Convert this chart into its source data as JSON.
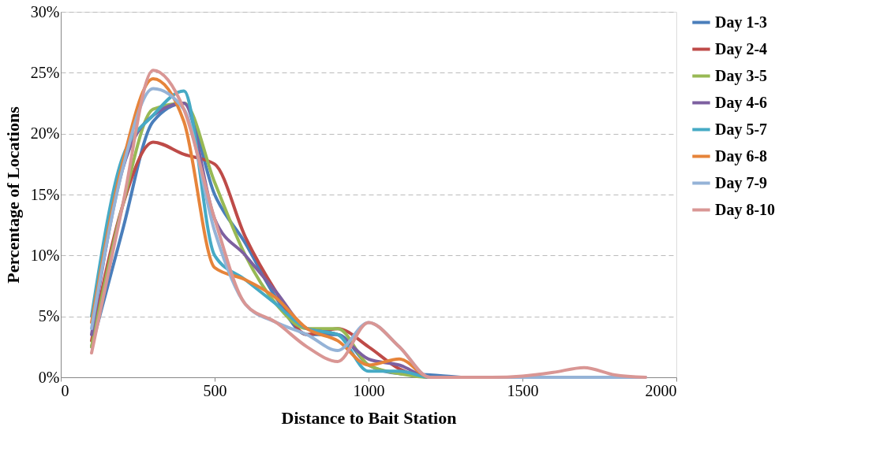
{
  "chart_data": {
    "type": "line",
    "xlabel": "Distance to Bait Station",
    "ylabel": "Percentage of Locations",
    "x": [
      100,
      200,
      300,
      400,
      500,
      600,
      700,
      800,
      900,
      1000,
      1100,
      1200,
      1300,
      1400,
      1500,
      1600,
      1700,
      1800,
      1900
    ],
    "series": [
      {
        "name": "Day 1-3",
        "color": "#4a7ebb",
        "values": [
          2.5,
          12,
          21,
          22.5,
          15,
          11,
          6.5,
          3.5,
          3.5,
          1,
          0.3,
          0.2,
          0,
          null,
          null,
          null,
          null,
          null,
          null
        ]
      },
      {
        "name": "Day 2-4",
        "color": "#be4b48",
        "values": [
          3,
          14,
          19.3,
          18.3,
          17.5,
          11.5,
          7,
          3.5,
          4,
          2.5,
          0.7,
          0,
          0,
          null,
          null,
          null,
          null,
          null,
          null
        ]
      },
      {
        "name": "Day 3-5",
        "color": "#98b954",
        "values": [
          2.5,
          14,
          22,
          22.5,
          16,
          10,
          6,
          4,
          4,
          1,
          0.3,
          0,
          0,
          null,
          null,
          null,
          null,
          null,
          null
        ]
      },
      {
        "name": "Day 4-6",
        "color": "#7d60a0",
        "values": [
          3.5,
          17,
          21.5,
          22.5,
          13,
          10,
          7,
          4,
          3.5,
          1.5,
          1,
          0,
          0,
          null,
          null,
          null,
          null,
          null,
          null
        ]
      },
      {
        "name": "Day 5-7",
        "color": "#46aac5",
        "values": [
          5,
          18,
          21.5,
          23.5,
          10,
          8,
          6,
          4,
          3.5,
          0.5,
          0.5,
          0,
          0,
          null,
          null,
          null,
          null,
          null,
          null
        ]
      },
      {
        "name": "Day 6-8",
        "color": "#e6843a",
        "values": [
          4.5,
          17.5,
          24.5,
          21,
          9,
          8,
          6.5,
          4,
          3,
          1,
          1.5,
          0,
          0,
          null,
          null,
          null,
          null,
          null,
          null
        ]
      },
      {
        "name": "Day 7-9",
        "color": "#95b3d7",
        "values": [
          4,
          17,
          23.7,
          22,
          12,
          6,
          4.5,
          3.5,
          2.2,
          4.5,
          2.5,
          0,
          0,
          0,
          0,
          0,
          0,
          0,
          0
        ]
      },
      {
        "name": "Day 8-10",
        "color": "#d99694",
        "values": [
          2,
          14,
          25.2,
          22,
          13,
          6,
          4.5,
          2.5,
          1.3,
          4.5,
          2.5,
          0,
          0,
          0,
          0.1,
          0.4,
          0.8,
          0.2,
          0
        ]
      }
    ],
    "xlim": [
      0,
      2000
    ],
    "xticks": [
      0,
      500,
      1000,
      1500,
      2000
    ],
    "ylim": [
      0,
      30
    ],
    "yticks": [
      {
        "value": 0,
        "label": "0%"
      },
      {
        "value": 5,
        "label": "5%"
      },
      {
        "value": 10,
        "label": "10%"
      },
      {
        "value": 15,
        "label": "15%"
      },
      {
        "value": 20,
        "label": "20%"
      },
      {
        "value": 25,
        "label": "25%"
      },
      {
        "value": 30,
        "label": "30%"
      }
    ],
    "grid": "y",
    "legend": "right",
    "marker": "none",
    "line_style": "solid"
  }
}
